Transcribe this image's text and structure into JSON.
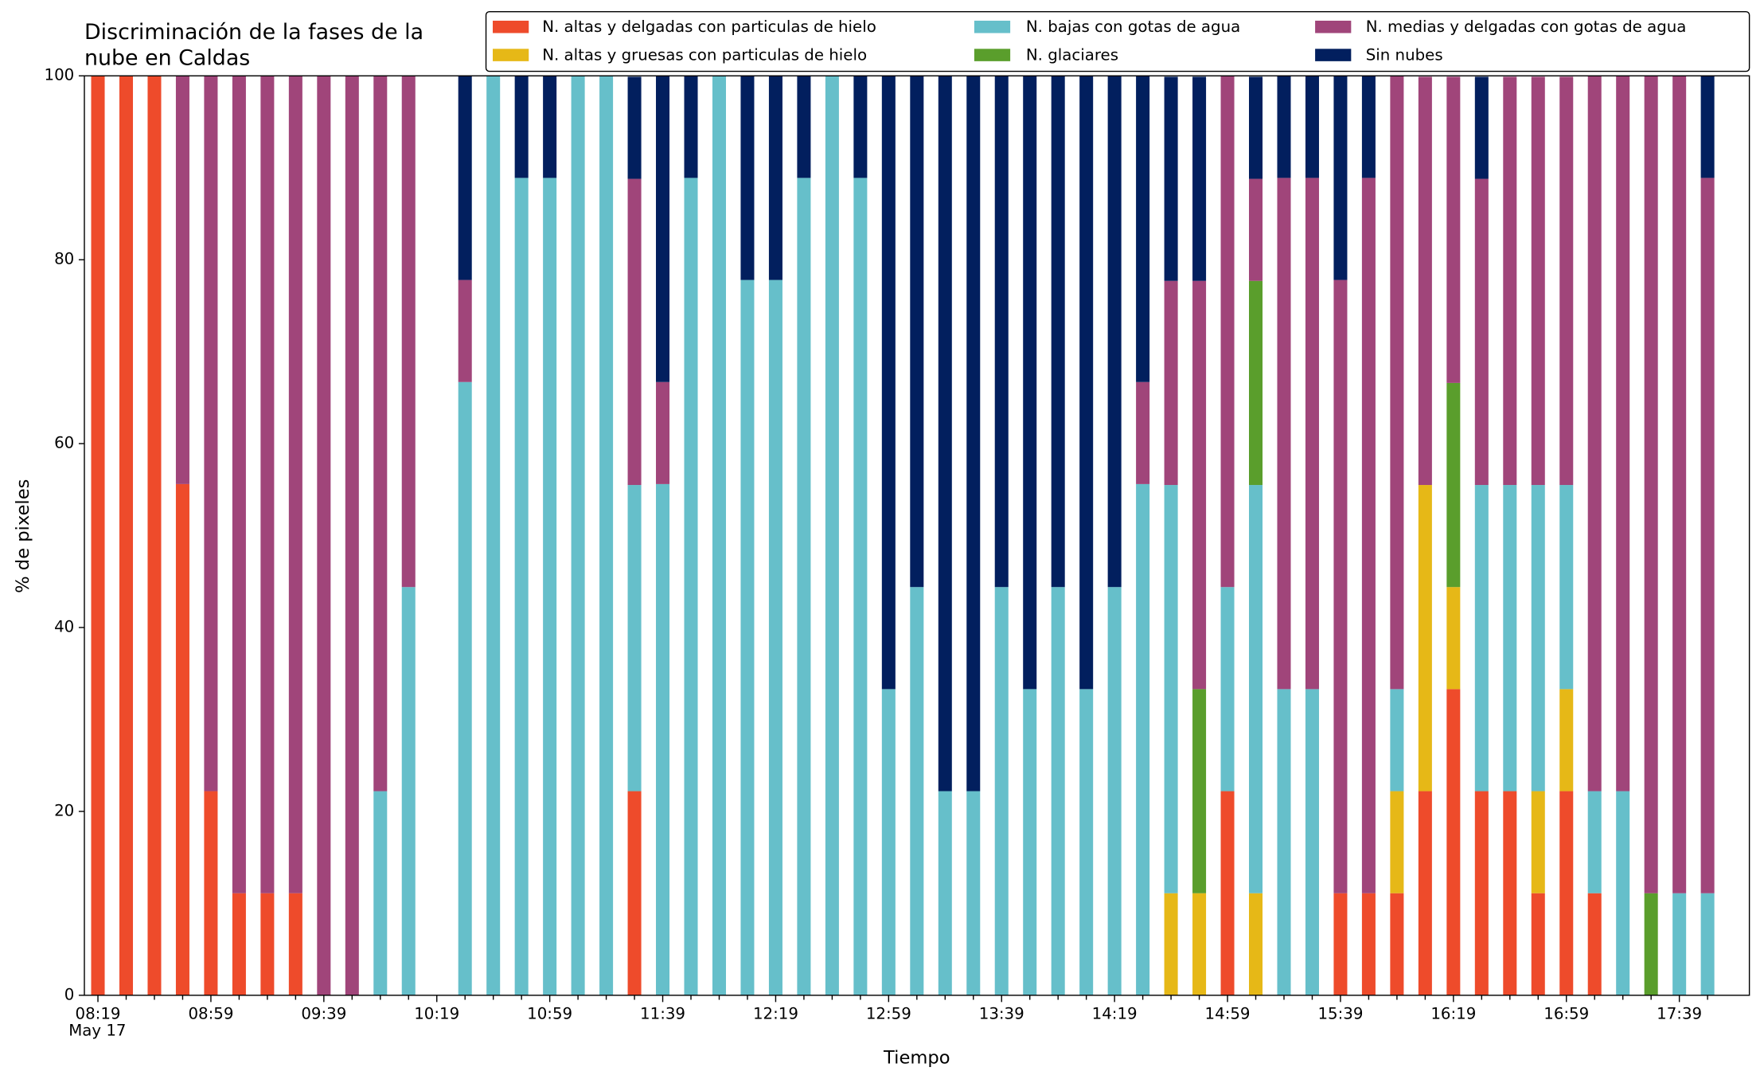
{
  "chart_data": {
    "type": "stacked_bar",
    "title": [
      "Discriminación de la fases de la",
      "nube en Caldas"
    ],
    "xlabel": "Tiempo",
    "ylabel": "% de pixeles",
    "x_date_label": "May 17",
    "categories": [
      "08:19",
      null,
      null,
      null,
      "08:59",
      null,
      null,
      null,
      "09:39",
      null,
      null,
      null,
      "10:19",
      null,
      null,
      null,
      "10:59",
      null,
      null,
      null,
      "11:39",
      null,
      null,
      null,
      "12:19",
      null,
      null,
      null,
      "12:59",
      null,
      null,
      null,
      "13:39",
      null,
      null,
      null,
      "14:19",
      null,
      null,
      null,
      "14:59",
      null,
      null,
      null,
      "15:39",
      null,
      null,
      null,
      "16:19",
      null,
      null,
      null,
      "16:59",
      null,
      null,
      null,
      "17:39",
      null
    ],
    "ylim": [
      0,
      100
    ],
    "yticks": [
      0,
      20,
      40,
      60,
      80,
      100
    ],
    "series": [
      {
        "name": "N. altas y delgadas con particulas de hielo",
        "color": "#ee4b2b",
        "values": [
          100,
          100,
          100,
          55.6,
          22.2,
          11.1,
          11.1,
          11.1,
          0,
          0,
          0,
          0,
          0,
          0,
          0,
          0,
          0,
          0,
          0,
          22.2,
          0,
          0,
          0,
          0,
          0,
          0,
          0,
          0,
          0,
          0,
          0,
          0,
          0,
          0,
          0,
          0,
          0,
          0,
          0,
          0,
          22.2,
          0,
          0,
          0,
          11.1,
          11.1,
          11.1,
          22.2,
          33.3,
          22.2,
          22.2,
          11.1,
          22.2,
          11.1,
          0,
          0,
          0,
          0
        ]
      },
      {
        "name": "N. altas y gruesas con particulas de hielo",
        "color": "#e6b817",
        "values": [
          0,
          0,
          0,
          0,
          0,
          0,
          0,
          0,
          0,
          0,
          0,
          0,
          0,
          0,
          0,
          0,
          0,
          0,
          0,
          0,
          0,
          0,
          0,
          0,
          0,
          0,
          0,
          0,
          0,
          0,
          0,
          0,
          0,
          0,
          0,
          0,
          0,
          0,
          11.1,
          11.1,
          0,
          11.1,
          0,
          0,
          0,
          0,
          11.1,
          33.3,
          11.1,
          0,
          0,
          11.1,
          11.1,
          0,
          0,
          0,
          0,
          0
        ]
      },
      {
        "name": "N. bajas con gotas de agua",
        "color": "#66bfca",
        "values": [
          0,
          0,
          0,
          0,
          0,
          0,
          0,
          0,
          0,
          0,
          22.2,
          44.4,
          0,
          66.7,
          100,
          88.9,
          88.9,
          100,
          100,
          33.3,
          55.6,
          88.9,
          100,
          77.8,
          77.8,
          88.9,
          100,
          88.9,
          33.3,
          44.4,
          22.2,
          22.2,
          44.4,
          33.3,
          44.4,
          33.3,
          44.4,
          55.6,
          44.4,
          0,
          22.2,
          44.4,
          33.3,
          33.3,
          0,
          0,
          11.1,
          0,
          0,
          33.3,
          33.3,
          33.3,
          22.2,
          11.1,
          22.2,
          0,
          11.1,
          11.1
        ]
      },
      {
        "name": "N. glaciares",
        "color": "#5a9e2c",
        "values": [
          0,
          0,
          0,
          0,
          0,
          0,
          0,
          0,
          0,
          0,
          0,
          0,
          0,
          0,
          0,
          0,
          0,
          0,
          0,
          0,
          0,
          0,
          0,
          0,
          0,
          0,
          0,
          0,
          0,
          0,
          0,
          0,
          0,
          0,
          0,
          0,
          0,
          0,
          0,
          22.2,
          0,
          22.2,
          0,
          0,
          0,
          0,
          0,
          0,
          22.2,
          0,
          0,
          0,
          0,
          0,
          0,
          11.1,
          0,
          0
        ]
      },
      {
        "name": "N. medias y delgadas con gotas de agua",
        "color": "#a0457a",
        "values": [
          0,
          0,
          0,
          44.4,
          77.8,
          88.9,
          88.9,
          88.9,
          100,
          100,
          77.8,
          55.6,
          0,
          11.1,
          0,
          0,
          0,
          0,
          0,
          33.3,
          11.1,
          0,
          0,
          0,
          0,
          0,
          0,
          0,
          0,
          0,
          0,
          0,
          0,
          0,
          0,
          0,
          0,
          11.1,
          22.2,
          44.4,
          55.6,
          11.1,
          55.6,
          55.6,
          66.7,
          77.8,
          66.7,
          44.4,
          33.3,
          33.3,
          44.4,
          44.4,
          44.4,
          77.8,
          77.8,
          88.9,
          88.9,
          77.8
        ]
      },
      {
        "name": "Sin nubes",
        "color": "#021f5e",
        "values": [
          0,
          0,
          0,
          0,
          0,
          0,
          0,
          0,
          0,
          0,
          0,
          0,
          0,
          22.2,
          0,
          11.1,
          11.1,
          0,
          0,
          11.1,
          33.3,
          11.1,
          0,
          22.2,
          22.2,
          11.1,
          0,
          11.1,
          66.7,
          55.6,
          77.8,
          77.8,
          55.6,
          66.7,
          55.6,
          66.7,
          55.6,
          33.3,
          22.2,
          22.2,
          0,
          11.1,
          11.1,
          11.1,
          22.2,
          11.1,
          0,
          0,
          0,
          11.1,
          0,
          0,
          0,
          0,
          0,
          0,
          0,
          11.1
        ]
      }
    ]
  }
}
